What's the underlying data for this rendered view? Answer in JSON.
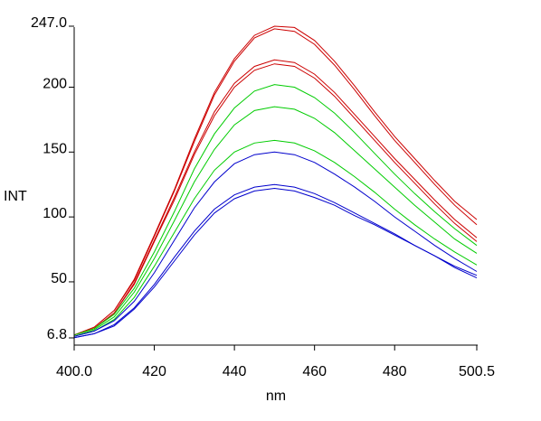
{
  "chart_data": {
    "type": "line",
    "xlabel": "nm",
    "ylabel": "INT",
    "xlim": [
      400.0,
      500.5
    ],
    "ylim": [
      6.8,
      247.0
    ],
    "x_ticks": [
      {
        "value": 400.0,
        "label": "400.0"
      },
      {
        "value": 420,
        "label": "420"
      },
      {
        "value": 440,
        "label": "440"
      },
      {
        "value": 460,
        "label": "460"
      },
      {
        "value": 480,
        "label": "480"
      },
      {
        "value": 500.5,
        "label": "500.5"
      }
    ],
    "y_ticks": [
      {
        "value": 6.8,
        "label": "6.8"
      },
      {
        "value": 50,
        "label": "50"
      },
      {
        "value": 100,
        "label": "100"
      },
      {
        "value": 150,
        "label": "150"
      },
      {
        "value": 200,
        "label": "200"
      },
      {
        "value": 247.0,
        "label": "247.0"
      }
    ],
    "grid": false,
    "legend": "none",
    "x": [
      400,
      405,
      410,
      415,
      420,
      425,
      430,
      435,
      440,
      445,
      450,
      455,
      460,
      465,
      470,
      475,
      480,
      485,
      490,
      495,
      500.5
    ],
    "series": [
      {
        "color": "#cc0000",
        "values": [
          9,
          15,
          28,
          52,
          86,
          121,
          160,
          196,
          222,
          240,
          247,
          246,
          236,
          220,
          201,
          181,
          162,
          145,
          128,
          112,
          98
        ]
      },
      {
        "color": "#cc0000",
        "values": [
          9,
          15,
          28,
          51,
          85,
          120,
          158,
          194,
          220,
          238,
          245,
          243,
          233,
          217,
          198,
          178,
          159,
          142,
          125,
          109,
          94
        ]
      },
      {
        "color": "#cc0000",
        "values": [
          9,
          14,
          26,
          49,
          82,
          115,
          150,
          181,
          203,
          216,
          221,
          219,
          210,
          196,
          179,
          162,
          145,
          129,
          113,
          98,
          84
        ]
      },
      {
        "color": "#cc0000",
        "values": [
          9,
          14,
          26,
          48,
          81,
          113,
          148,
          178,
          200,
          213,
          218,
          216,
          207,
          193,
          176,
          159,
          142,
          126,
          110,
          95,
          81
        ]
      },
      {
        "color": "#00cc00",
        "values": [
          9,
          14,
          25,
          45,
          73,
          104,
          137,
          164,
          184,
          197,
          202,
          200,
          192,
          180,
          165,
          149,
          133,
          118,
          104,
          91,
          78
        ]
      },
      {
        "color": "#00cc00",
        "values": [
          8,
          13,
          23,
          42,
          68,
          97,
          127,
          152,
          171,
          182,
          185,
          183,
          176,
          165,
          151,
          137,
          123,
          109,
          96,
          83,
          72
        ]
      },
      {
        "color": "#00cc00",
        "values": [
          8,
          12,
          21,
          38,
          62,
          88,
          114,
          136,
          150,
          157,
          159,
          157,
          151,
          142,
          131,
          119,
          106,
          94,
          83,
          73,
          63
        ]
      },
      {
        "color": "#0000cc",
        "values": [
          8,
          12,
          20,
          35,
          57,
          82,
          107,
          127,
          141,
          148,
          150,
          148,
          142,
          133,
          123,
          112,
          100,
          89,
          78,
          68,
          58
        ]
      },
      {
        "color": "#0000cc",
        "values": [
          7,
          10,
          17,
          30,
          48,
          69,
          89,
          106,
          117,
          123,
          125,
          123,
          118,
          111,
          103,
          95,
          87,
          78,
          70,
          61,
          53
        ]
      },
      {
        "color": "#0000cc",
        "values": [
          7,
          10,
          16,
          29,
          46,
          66,
          86,
          103,
          114,
          120,
          122,
          120,
          115,
          109,
          101,
          94,
          86,
          78,
          70,
          62,
          55
        ]
      }
    ]
  }
}
